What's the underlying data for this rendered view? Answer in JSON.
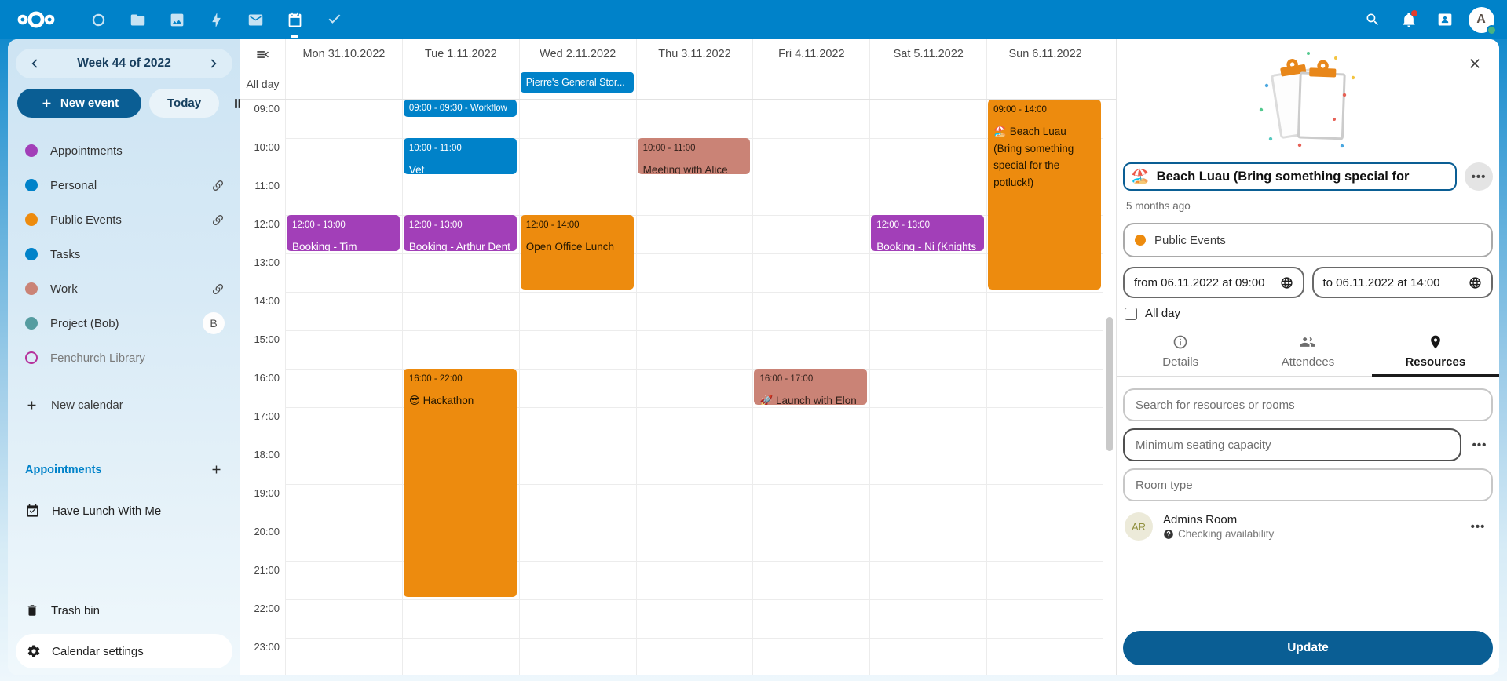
{
  "topbar": {
    "avatar_letter": "A",
    "apps": [
      {
        "id": "dashboard",
        "active": false
      },
      {
        "id": "files",
        "active": false
      },
      {
        "id": "photos",
        "active": false
      },
      {
        "id": "activity",
        "active": false
      },
      {
        "id": "mail",
        "active": false
      },
      {
        "id": "calendar",
        "active": true
      },
      {
        "id": "tasks",
        "active": false
      }
    ]
  },
  "sidebar": {
    "week_label": "Week 44 of 2022",
    "new_event_label": "New event",
    "today_label": "Today",
    "calendars": [
      {
        "name": "Appointments",
        "color": "#a23fb8",
        "style": "dot"
      },
      {
        "name": "Personal",
        "color": "#0082c9",
        "style": "dot",
        "trailing": "link"
      },
      {
        "name": "Public Events",
        "color": "#ed8b0e",
        "style": "dot",
        "trailing": "link"
      },
      {
        "name": "Tasks",
        "color": "#0082c9",
        "style": "dot"
      },
      {
        "name": "Work",
        "color": "#ca8376",
        "style": "dot",
        "trailing": "link"
      },
      {
        "name": "Project (Bob)",
        "color": "#559ca0",
        "style": "dot",
        "trailing": "badge",
        "badge": "B"
      },
      {
        "name": "Fenchurch Library",
        "color": "#b5319c",
        "style": "outline",
        "muted": true
      }
    ],
    "new_calendar_label": "New calendar",
    "appointments_header": "Appointments",
    "appointment_items": [
      "Have Lunch With Me"
    ],
    "trash_label": "Trash bin",
    "settings_label": "Calendar settings"
  },
  "calendar": {
    "allday_label": "All day",
    "days": [
      "Mon 31.10.2022",
      "Tue 1.11.2022",
      "Wed 2.11.2022",
      "Thu 3.11.2022",
      "Fri 4.11.2022",
      "Sat 5.11.2022",
      "Sun 6.11.2022"
    ],
    "hours": [
      "09:00",
      "10:00",
      "11:00",
      "12:00",
      "13:00",
      "14:00",
      "15:00",
      "16:00",
      "17:00",
      "18:00",
      "19:00",
      "20:00",
      "21:00",
      "22:00",
      "23:00"
    ],
    "allday_events": [
      {
        "day": 2,
        "label": "Pierre's General Stor...",
        "color": "blue"
      }
    ],
    "events": [
      {
        "day": 0,
        "start": 12,
        "end": 13,
        "color": "purple",
        "time": "12:00 - 13:00",
        "title": "Booking - Tim (Wizard)"
      },
      {
        "day": 1,
        "start": 9,
        "end": 9.5,
        "color": "blue",
        "time": "09:00 - 09:30 - Workflow",
        "title": "",
        "compact": true
      },
      {
        "day": 1,
        "start": 10,
        "end": 11,
        "color": "blue",
        "time": "10:00 - 11:00",
        "title": "Vet"
      },
      {
        "day": 1,
        "start": 12,
        "end": 13,
        "color": "purple",
        "time": "12:00 - 13:00",
        "title": "Booking - Arthur Dent"
      },
      {
        "day": 1,
        "start": 16,
        "end": 22,
        "color": "orange",
        "time": "16:00 - 22:00",
        "title": "😎 Hackathon"
      },
      {
        "day": 2,
        "start": 12,
        "end": 14,
        "color": "orange",
        "time": "12:00 - 14:00",
        "title": "Open Office Lunch"
      },
      {
        "day": 3,
        "start": 10,
        "end": 11,
        "color": "salmon",
        "time": "10:00 - 11:00",
        "title": "Meeting with Alice"
      },
      {
        "day": 4,
        "start": 16,
        "end": 17,
        "color": "salmon",
        "time": "16:00 - 17:00",
        "title": "🚀 Launch with Elon"
      },
      {
        "day": 5,
        "start": 12,
        "end": 13,
        "color": "purple",
        "time": "12:00 - 13:00",
        "title": "Booking - Ni (Knights"
      },
      {
        "day": 6,
        "start": 9,
        "end": 14,
        "color": "orange",
        "time": "09:00 - 14:00",
        "title": "🏖️ Beach Luau (Bring something special for the potluck!)"
      }
    ],
    "palette": {
      "blue": {
        "bg": "#0082c9",
        "fg": "#ffffff"
      },
      "purple": {
        "bg": "#a23fb8",
        "fg": "#ffffff"
      },
      "orange": {
        "bg": "#ed8b0e",
        "fg": "#201500"
      },
      "salmon": {
        "bg": "#ca8376",
        "fg": "#33211b"
      }
    }
  },
  "panel": {
    "title_emoji": "🏖️",
    "title_text": "Beach Luau (Bring something special for",
    "menu_dots": "•••",
    "time_ago": "5 months ago",
    "calendar_name": "Public Events",
    "calendar_color": "#ed8b0e",
    "from_label": "from 06.11.2022 at 09:00",
    "to_label": "to 06.11.2022 at 14:00",
    "allday_label": "All day",
    "tabs": [
      {
        "label": "Details",
        "icon": "info",
        "active": false
      },
      {
        "label": "Attendees",
        "icon": "people",
        "active": false
      },
      {
        "label": "Resources",
        "icon": "pin",
        "active": true
      }
    ],
    "search_placeholder": "Search for resources or rooms",
    "seating_placeholder": "Minimum seating capacity",
    "room_type_placeholder": "Room type",
    "resource": {
      "initials": "AR",
      "name": "Admins Room",
      "status": "Checking availability"
    },
    "update_label": "Update"
  }
}
